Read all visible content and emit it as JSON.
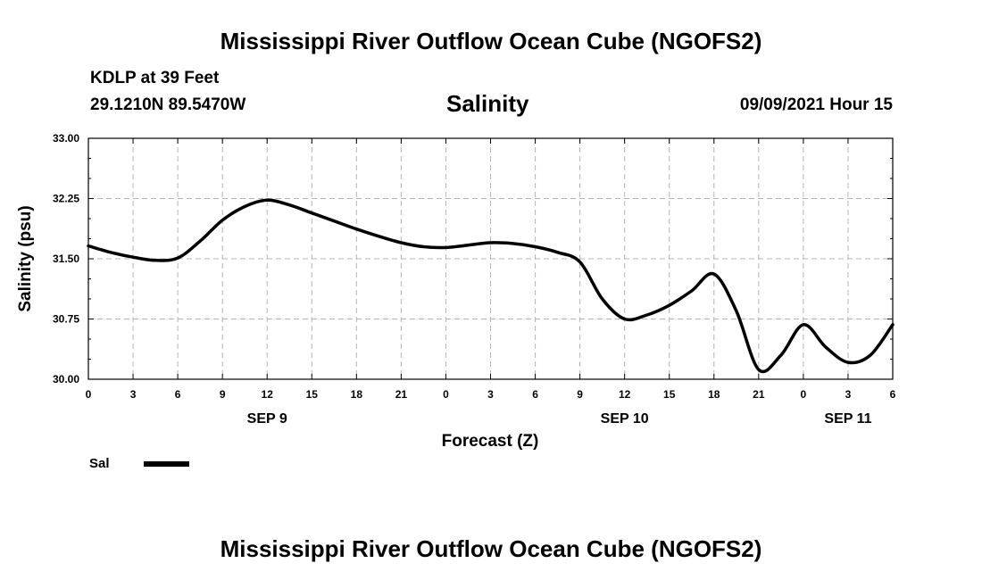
{
  "header": {
    "title_top": "Mississippi River Outflow Ocean Cube (NGOFS2)",
    "station": "KDLP at 39 Feet",
    "coords": "29.1210N  89.5470W",
    "variable": "Salinity",
    "timestamp": "09/09/2021 Hour 15",
    "title_bottom": "Mississippi River Outflow Ocean Cube (NGOFS2)"
  },
  "colors": {
    "line": "#000000",
    "grid": "#b4b4b4"
  },
  "chart_data": {
    "type": "line",
    "title": "Salinity",
    "xlabel": "Forecast (Z)",
    "ylabel": "Salinity (psu)",
    "xlim": [
      0,
      54
    ],
    "ylim": [
      30.0,
      33.0
    ],
    "yticks": [
      "30.00",
      "30.75",
      "31.50",
      "32.25",
      "33.00"
    ],
    "xtick_labels": [
      "0",
      "3",
      "6",
      "9",
      "12",
      "15",
      "18",
      "21",
      "0",
      "3",
      "6",
      "9",
      "12",
      "15",
      "18",
      "21",
      "0",
      "3",
      "6"
    ],
    "day_labels": [
      {
        "label": "SEP 9",
        "hour": 12
      },
      {
        "label": "SEP 10",
        "hour": 36
      },
      {
        "label": "SEP 11",
        "hour": 51
      }
    ],
    "legend": {
      "position": "bottom-left",
      "entries": [
        "Sal"
      ]
    },
    "series": [
      {
        "name": "Sal",
        "x": [
          0,
          1.5,
          3,
          4.5,
          6,
          7.5,
          9,
          10.5,
          12,
          13.5,
          15,
          16.5,
          18,
          19.5,
          21,
          22.5,
          24,
          25.5,
          27,
          28.5,
          30,
          31.5,
          33,
          34.5,
          36,
          37.5,
          39,
          40.5,
          42,
          43.5,
          45,
          46.5,
          48,
          49.5,
          51,
          52.5,
          54
        ],
        "y": [
          31.66,
          31.58,
          31.52,
          31.48,
          31.51,
          31.72,
          31.98,
          32.15,
          32.23,
          32.17,
          32.07,
          31.97,
          31.87,
          31.78,
          31.7,
          31.65,
          31.64,
          31.67,
          31.7,
          31.69,
          31.65,
          31.58,
          31.46,
          31.0,
          30.75,
          30.8,
          30.92,
          31.1,
          31.31,
          30.85,
          30.12,
          30.3,
          30.68,
          30.4,
          30.21,
          30.3,
          30.68
        ]
      }
    ]
  }
}
